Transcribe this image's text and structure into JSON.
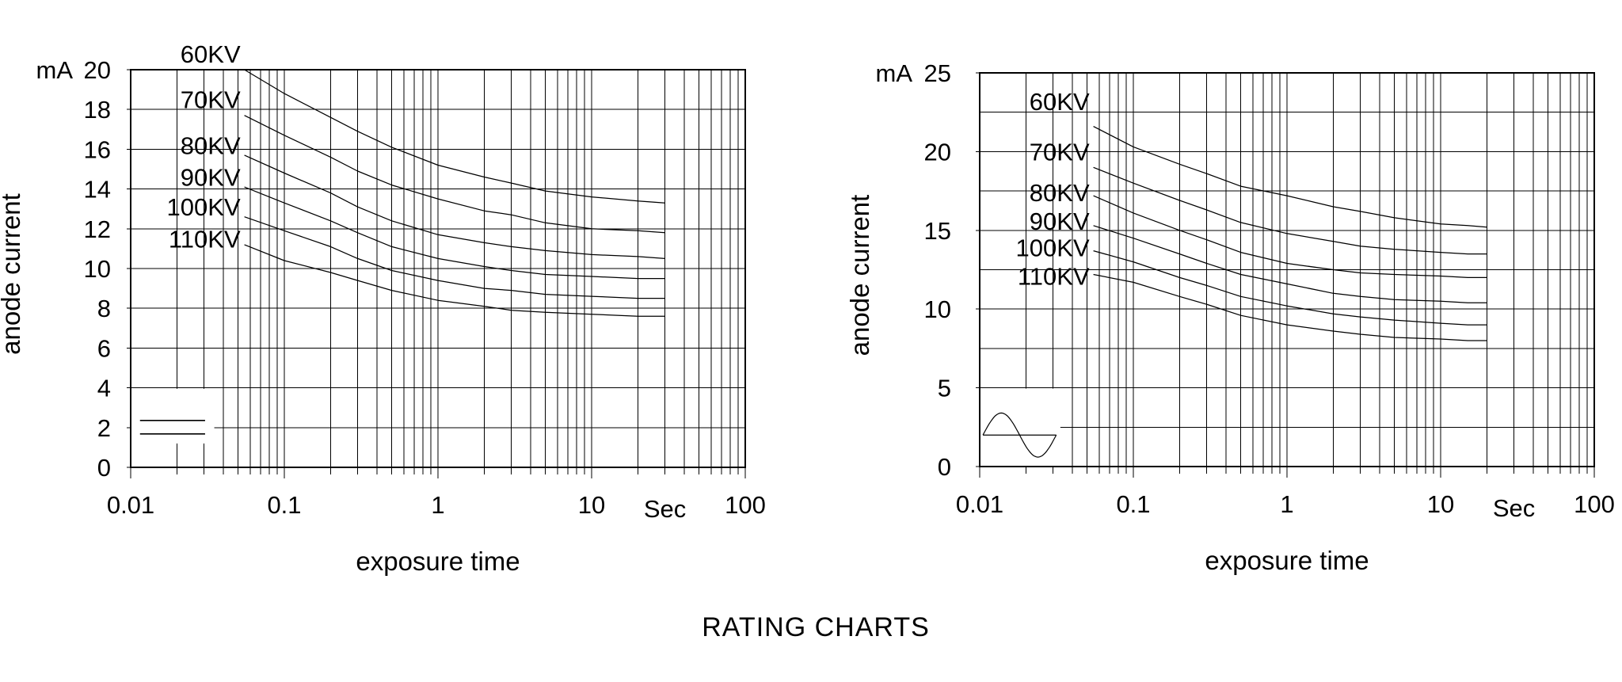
{
  "page": {
    "title": "RATING CHARTS",
    "background": "#ffffff",
    "line_color": "#000000"
  },
  "chart_data": [
    {
      "id": "left",
      "type": "line",
      "waveform": "constant-potential-dc",
      "ylabel": "anode current",
      "xlabel": "exposure time",
      "y_unit": "mA",
      "x_unit": "Sec",
      "x_unit_position": 30,
      "xscale": "log",
      "xlim": [
        0.01,
        100
      ],
      "ylim": [
        0,
        20
      ],
      "ygrid_step": 2,
      "yticks": [
        0,
        2,
        4,
        6,
        8,
        10,
        12,
        14,
        16,
        18,
        20
      ],
      "xticks": [
        0.01,
        0.1,
        1,
        10,
        100
      ],
      "xtick_labels": [
        "0.01",
        "0.1",
        "1",
        "10",
        "100"
      ],
      "grid": "log-minor-on",
      "x": [
        0.055,
        0.1,
        0.2,
        0.3,
        0.5,
        1,
        2,
        3,
        5,
        10,
        20,
        30
      ],
      "series": [
        {
          "label": "60KV",
          "label_y": 20.8,
          "values": [
            20.0,
            18.8,
            17.6,
            16.9,
            16.1,
            15.2,
            14.6,
            14.3,
            13.9,
            13.6,
            13.4,
            13.3
          ]
        },
        {
          "label": "70KV",
          "label_y": 18.5,
          "values": [
            17.7,
            16.7,
            15.6,
            14.9,
            14.2,
            13.5,
            12.9,
            12.7,
            12.3,
            12.0,
            11.9,
            11.8
          ]
        },
        {
          "label": "80KV",
          "label_y": 16.2,
          "values": [
            15.7,
            14.8,
            13.8,
            13.1,
            12.4,
            11.7,
            11.3,
            11.1,
            10.9,
            10.7,
            10.6,
            10.5
          ]
        },
        {
          "label": "90KV",
          "label_y": 14.6,
          "values": [
            14.1,
            13.3,
            12.4,
            11.8,
            11.1,
            10.5,
            10.1,
            9.9,
            9.7,
            9.6,
            9.5,
            9.5
          ]
        },
        {
          "label": "100KV",
          "label_y": 13.1,
          "values": [
            12.6,
            11.9,
            11.1,
            10.5,
            9.9,
            9.4,
            9.0,
            8.9,
            8.7,
            8.6,
            8.5,
            8.5
          ]
        },
        {
          "label": "110KV",
          "label_y": 11.5,
          "values": [
            11.2,
            10.4,
            9.8,
            9.4,
            8.9,
            8.4,
            8.1,
            7.9,
            7.8,
            7.7,
            7.6,
            7.6
          ]
        }
      ],
      "legend": {
        "symbol": "dc-two-lines",
        "box_t": [
          0.01,
          0.035
        ],
        "box_mA": [
          1.2,
          3.95
        ],
        "dc_lines_mA": [
          2.36,
          1.68
        ],
        "dc_line_t": [
          0.0115,
          0.0305
        ]
      }
    },
    {
      "id": "right",
      "type": "line",
      "waveform": "ac-sine",
      "ylabel": "anode current",
      "xlabel": "exposure time",
      "y_unit": "mA",
      "x_unit": "Sec",
      "x_unit_position": 30,
      "xscale": "log",
      "xlim": [
        0.01,
        100
      ],
      "ylim": [
        0,
        25
      ],
      "ygrid_step": 2.5,
      "yticks": [
        0,
        5,
        10,
        15,
        20,
        25
      ],
      "xticks": [
        0.01,
        0.1,
        1,
        10,
        100
      ],
      "xtick_labels": [
        "0.01",
        "0.1",
        "1",
        "10",
        "100"
      ],
      "grid": "log-minor-on",
      "x": [
        0.055,
        0.1,
        0.2,
        0.3,
        0.5,
        1,
        2,
        3,
        5,
        10,
        15,
        20
      ],
      "series": [
        {
          "label": "60KV",
          "label_y": 23.2,
          "values": [
            21.6,
            20.3,
            19.2,
            18.6,
            17.8,
            17.2,
            16.5,
            16.2,
            15.8,
            15.4,
            15.3,
            15.2
          ]
        },
        {
          "label": "70KV",
          "label_y": 20.0,
          "values": [
            19.0,
            18.0,
            16.9,
            16.3,
            15.5,
            14.8,
            14.3,
            14.0,
            13.8,
            13.6,
            13.5,
            13.5
          ]
        },
        {
          "label": "80KV",
          "label_y": 17.4,
          "values": [
            17.2,
            16.1,
            15.0,
            14.4,
            13.6,
            12.9,
            12.5,
            12.3,
            12.2,
            12.1,
            12.0,
            12.0
          ]
        },
        {
          "label": "90KV",
          "label_y": 15.6,
          "values": [
            15.3,
            14.5,
            13.5,
            12.9,
            12.2,
            11.6,
            11.0,
            10.8,
            10.6,
            10.5,
            10.4,
            10.4
          ]
        },
        {
          "label": "100KV",
          "label_y": 13.9,
          "values": [
            13.7,
            13.0,
            12.0,
            11.5,
            10.8,
            10.2,
            9.7,
            9.5,
            9.3,
            9.1,
            9.0,
            9.0
          ]
        },
        {
          "label": "110KV",
          "label_y": 12.1,
          "values": [
            12.2,
            11.7,
            10.8,
            10.3,
            9.6,
            9.0,
            8.6,
            8.4,
            8.2,
            8.1,
            8.0,
            8.0
          ]
        }
      ],
      "legend": {
        "symbol": "ac-sine-wave",
        "box_t": [
          0.01,
          0.0335
        ],
        "box_mA": [
          0,
          4.95
        ],
        "sine_axis_mA": 2.0,
        "sine_amp_mA": 1.4,
        "sine_t": [
          0.0105,
          0.0315
        ]
      }
    }
  ]
}
